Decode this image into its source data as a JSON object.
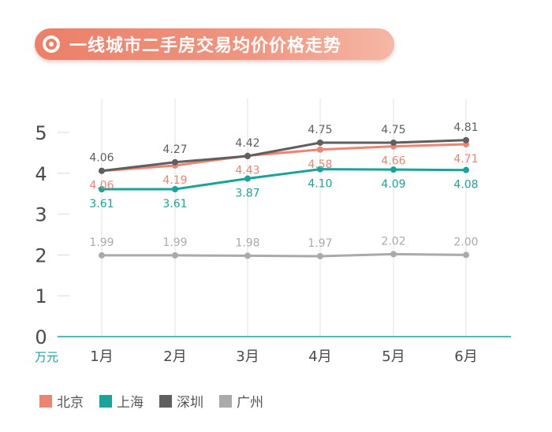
{
  "title": "一线城市二手房交易均价价格走势",
  "chart_data": {
    "type": "line",
    "categories": [
      "1月",
      "2月",
      "3月",
      "4月",
      "5月",
      "6月"
    ],
    "ylabel": "万元",
    "ylim": [
      0,
      5
    ],
    "yticks": [
      "0",
      "1",
      "2",
      "3",
      "4",
      "5"
    ],
    "grid": "vertical",
    "legend_position": "bottom-left",
    "series": [
      {
        "name": "北京",
        "color": "#ec8472",
        "values": [
          4.06,
          4.19,
          4.43,
          4.58,
          4.66,
          4.71
        ],
        "labels": [
          "4.06",
          "4.19",
          "4.43",
          "4.58",
          "4.66",
          "4.71"
        ],
        "label_pos": "below"
      },
      {
        "name": "上海",
        "color": "#1aa39a",
        "values": [
          3.61,
          3.61,
          3.87,
          4.1,
          4.09,
          4.08
        ],
        "labels": [
          "3.61",
          "3.61",
          "3.87",
          "4.10",
          "4.09",
          "4.08"
        ],
        "label_pos": "below"
      },
      {
        "name": "深圳",
        "color": "#5f5f5f",
        "values": [
          4.06,
          4.27,
          4.42,
          4.75,
          4.75,
          4.81
        ],
        "labels": [
          "4.06",
          "4.27",
          "4.42",
          "4.75",
          "4.75",
          "4.81"
        ],
        "label_pos": "above"
      },
      {
        "name": "广州",
        "color": "#aaaaaa",
        "values": [
          1.99,
          1.99,
          1.98,
          1.97,
          2.02,
          2.0
        ],
        "labels": [
          "1.99",
          "1.99",
          "1.98",
          "1.97",
          "2.02",
          "2.00"
        ],
        "label_pos": "above"
      }
    ]
  }
}
